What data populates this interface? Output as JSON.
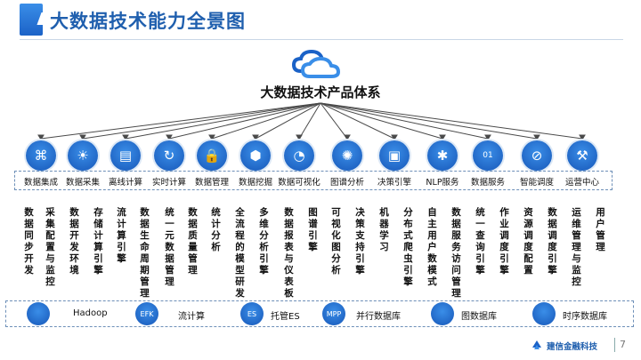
{
  "header": {
    "title": "大数据技术能力全景图"
  },
  "system_title": "大数据技术产品体系",
  "modules": [
    {
      "label": "数据集成",
      "icon": "network-icon",
      "desc": "数据同步开发"
    },
    {
      "label": "数据采集",
      "icon": "lightbulb-icon",
      "desc": "采集配置与监控"
    },
    {
      "label": "离线计算",
      "icon": "folders-icon",
      "desc": "数据开发环境"
    },
    {
      "label": "实时计算",
      "icon": "refresh-icon",
      "desc": "存储计算引擎"
    },
    {
      "label": "数据管理",
      "icon": "lock-icon",
      "desc": "流计算引擎"
    },
    {
      "label": "数据挖掘",
      "icon": "cube-icon",
      "desc": "数据生命周期管理"
    },
    {
      "label": "数据可视化",
      "icon": "pie-icon",
      "desc": "统一元数据管理"
    },
    {
      "label": "图谱分析",
      "icon": "graph-icon",
      "desc": "数据质量管理"
    },
    {
      "label": "决策引擎",
      "icon": "screen-chart-icon",
      "desc": "统计分析"
    },
    {
      "label": "NLP服务",
      "icon": "bug-icon",
      "desc": "全流程的模型研发"
    },
    {
      "label": "数据服务",
      "icon": "binary-icon",
      "desc": "多维分析引擎"
    },
    {
      "label": "智能调度",
      "icon": "slash-icon",
      "desc": "数据报表与仪表板"
    },
    {
      "label": "运营中心",
      "icon": "tools-icon",
      "desc": "图谱引擎"
    }
  ],
  "vertical_texts": [
    "数据同步开发",
    "采集配置与监控",
    "数据开发环境",
    "存储计算引擎",
    "流计算引擎",
    "数据生命周期管理",
    "统一元数据管理",
    "数据质量管理",
    "统计分析",
    "全流程的模型研发",
    "多维分析引擎",
    "数据报表与仪表板",
    "图谱引擎",
    "可视化图分析",
    "决策支持引擎",
    "机器学习",
    "分布式爬虫引擎",
    "自主用户数模式",
    "数据服务访问管理",
    "统一查询引擎",
    "作业调度引擎",
    "资源调度配置",
    "数据调度引擎",
    "运维管理与监控",
    "用户管理"
  ],
  "tech": [
    {
      "label": "Hadoop",
      "icon": "elephant-icon",
      "badge": ""
    },
    {
      "label": "流计算",
      "icon": "efk-icon",
      "badge": "EFK"
    },
    {
      "label": "托管ES",
      "icon": "es-icon",
      "badge": "ES"
    },
    {
      "label": "并行数据库",
      "icon": "mpp-icon",
      "badge": "MPP"
    },
    {
      "label": "图数据库",
      "icon": "graph-db-icon",
      "badge": ""
    },
    {
      "label": "时序数据库",
      "icon": "clock-icon",
      "badge": ""
    }
  ],
  "footer": {
    "brand": "建信金融科技",
    "page": "7"
  },
  "colors": {
    "primary": "#1b62c7",
    "accent": "#3a8ee8",
    "title": "#1f5fae"
  }
}
